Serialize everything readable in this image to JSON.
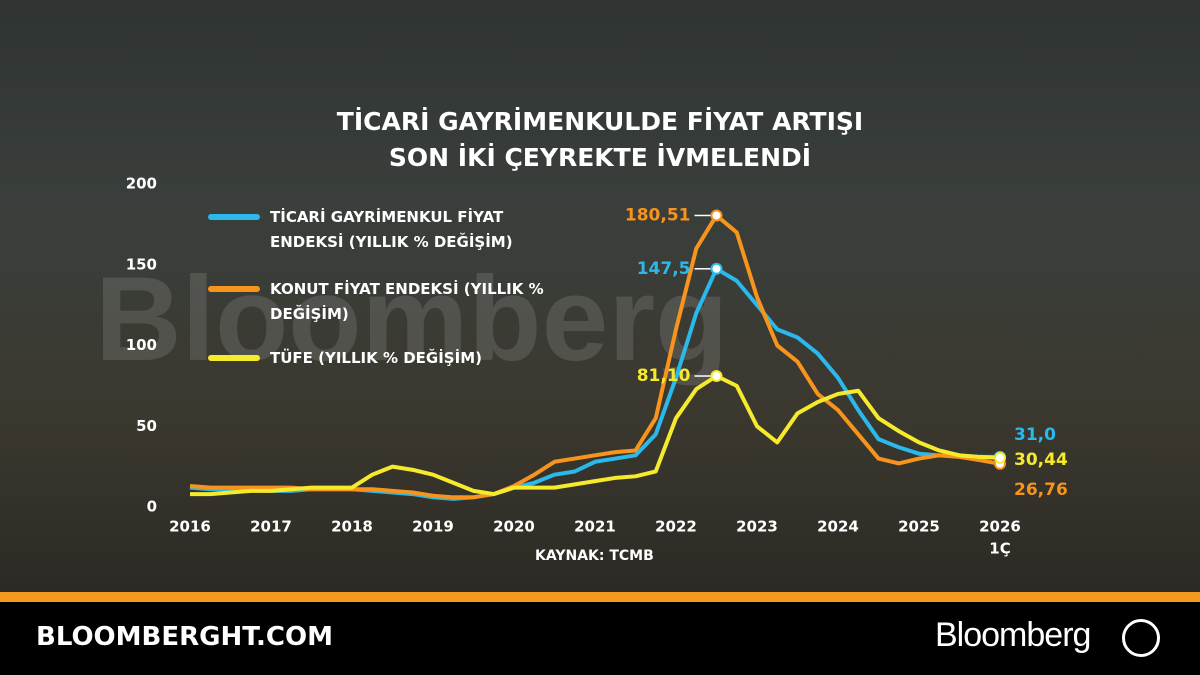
{
  "chart_data": {
    "type": "line",
    "title": "TİCARİ GAYRİMENKULDE FİYAT ARTIŞI SON İKİ ÇEYREKTE İVMELENDİ",
    "x": [
      2016,
      2016.25,
      2016.5,
      2016.75,
      2017,
      2017.25,
      2017.5,
      2017.75,
      2018,
      2018.25,
      2018.5,
      2018.75,
      2019,
      2019.25,
      2019.5,
      2019.75,
      2020,
      2020.25,
      2020.5,
      2020.75,
      2021,
      2021.25,
      2021.5,
      2021.75,
      2022,
      2022.25,
      2022.5,
      2022.75,
      2023,
      2023.25,
      2023.5,
      2023.75,
      2024,
      2024.25,
      2024.5,
      2024.75,
      2025,
      2025.25,
      2025.5,
      2025.75,
      2026
    ],
    "series": [
      {
        "name": "TİCARİ GAYRİMENKUL FİYAT ENDEKSİ (YILLIK % DEĞİŞİM)",
        "color": "#2bb8ea",
        "values": [
          12,
          11,
          11,
          11,
          10,
          10,
          11,
          11,
          11,
          10,
          9,
          8,
          6,
          5,
          6,
          8,
          12,
          15,
          20,
          22,
          28,
          30,
          32,
          45,
          80,
          120,
          147.5,
          140,
          125,
          110,
          105,
          95,
          80,
          60,
          42,
          37,
          33,
          32,
          32,
          31,
          31
        ],
        "value_labels": [
          null,
          null,
          null,
          null,
          null,
          null,
          null,
          null,
          null,
          null,
          null,
          null,
          null,
          null,
          null,
          null,
          null,
          null,
          null,
          null,
          null,
          null,
          null,
          null,
          null,
          null,
          "147,5",
          null,
          null,
          null,
          null,
          null,
          null,
          null,
          null,
          null,
          null,
          null,
          null,
          null,
          "31,0"
        ]
      },
      {
        "name": "KONUT FİYAT ENDEKSİ (YILLIK % DEĞİŞİM)",
        "color": "#f7941d",
        "values": [
          13,
          12,
          12,
          12,
          12,
          12,
          11,
          11,
          11,
          11,
          10,
          9,
          7,
          6,
          6,
          8,
          13,
          20,
          28,
          30,
          32,
          34,
          35,
          55,
          110,
          160,
          180.51,
          170,
          130,
          100,
          90,
          70,
          60,
          45,
          30,
          27,
          30,
          32,
          31,
          29,
          26.76
        ],
        "value_labels": [
          null,
          null,
          null,
          null,
          null,
          null,
          null,
          null,
          null,
          null,
          null,
          null,
          null,
          null,
          null,
          null,
          null,
          null,
          null,
          null,
          null,
          null,
          null,
          null,
          null,
          null,
          "180,51",
          null,
          null,
          null,
          null,
          null,
          null,
          null,
          null,
          null,
          null,
          null,
          null,
          null,
          "26,76"
        ]
      },
      {
        "name": "TÜFE (YILLIK % DEĞİŞİM)",
        "color": "#f6ea2c",
        "values": [
          8,
          8,
          9,
          10,
          10,
          11,
          12,
          12,
          12,
          20,
          25,
          23,
          20,
          15,
          10,
          8,
          12,
          12,
          12,
          14,
          16,
          18,
          19,
          22,
          55,
          73,
          81.1,
          75,
          50,
          40,
          58,
          65,
          70,
          72,
          55,
          47,
          40,
          35,
          32,
          31,
          30.44
        ],
        "value_labels": [
          null,
          null,
          null,
          null,
          null,
          null,
          null,
          null,
          null,
          null,
          null,
          null,
          null,
          null,
          null,
          null,
          null,
          null,
          null,
          null,
          null,
          null,
          null,
          null,
          null,
          null,
          "81,10",
          null,
          null,
          null,
          null,
          null,
          null,
          null,
          null,
          null,
          null,
          null,
          null,
          null,
          "30,44"
        ]
      }
    ],
    "xlim": [
      2016,
      2026
    ],
    "xticks": [
      2016,
      2017,
      2018,
      2019,
      2020,
      2021,
      2022,
      2023,
      2024,
      2025,
      2026
    ],
    "x_sublabel": "1Ç",
    "ylim": [
      0,
      200
    ],
    "yticks": [
      0,
      50,
      100,
      150,
      200
    ],
    "source": "KAYNAK: TCMB",
    "watermark": "Bloomberg",
    "footer_site": "BLOOMBERGHT.COM",
    "footer_brand": "Bloomberg"
  }
}
